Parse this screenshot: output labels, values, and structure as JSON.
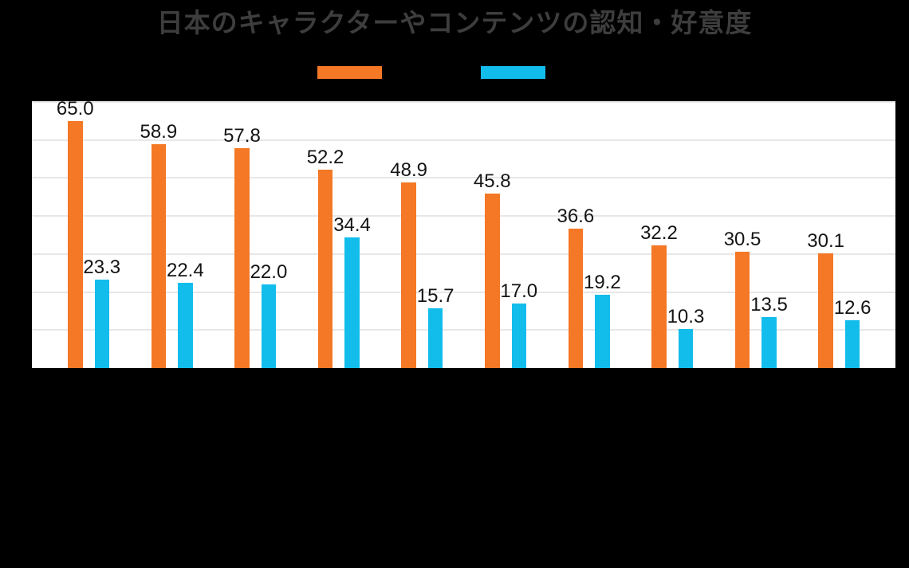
{
  "title": "日本のキャラクターやコンテンツの認知・好意度",
  "colors": {
    "background": "#000000",
    "title_text": "#3d3d3d",
    "plot_background": "#ffffff",
    "gridline": "#e7e7e7",
    "value_label_text": "#141414",
    "series_orange": "#f47825",
    "series_blue": "#12bdec"
  },
  "legend": {
    "items": [
      {
        "label": "",
        "color": "#f47825",
        "swatch": "orange-swatch"
      },
      {
        "label": "",
        "color": "#12bdec",
        "swatch": "blue-swatch"
      }
    ]
  },
  "chart_data": {
    "type": "bar",
    "title": "日本のキャラクターやコンテンツの認知・好意度",
    "categories": [
      "",
      "",
      "",
      "",
      "",
      "",
      "",
      "",
      "",
      ""
    ],
    "series": [
      {
        "name": "series-orange",
        "color": "#f47825",
        "values": [
          65.0,
          58.9,
          57.8,
          52.2,
          48.9,
          45.8,
          36.6,
          32.2,
          30.5,
          30.1
        ]
      },
      {
        "name": "series-blue",
        "color": "#12bdec",
        "values": [
          23.3,
          22.4,
          22.0,
          34.4,
          15.7,
          17.0,
          19.2,
          10.3,
          13.5,
          12.6
        ]
      }
    ],
    "xlabel": "",
    "ylabel": "",
    "ylim": [
      0,
      70
    ],
    "grid": true,
    "gridline_interval": 10,
    "value_labels": true,
    "value_label_format": "0.1f",
    "legend_position": "top"
  }
}
